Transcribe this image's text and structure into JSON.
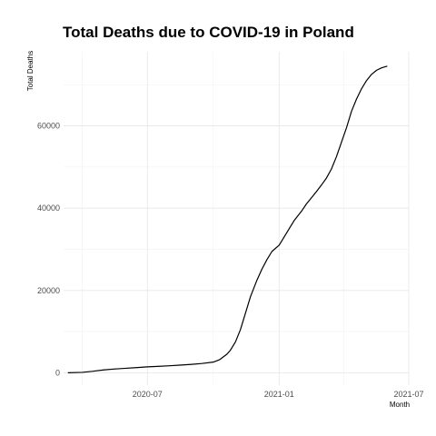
{
  "chart_data": {
    "type": "line",
    "title": "Total Deaths due to COVID-19 in Poland",
    "xlabel": "Month",
    "ylabel": "Total Deaths",
    "x_ticks": [
      {
        "label": "2020-07",
        "date": "2020-07-01"
      },
      {
        "label": "2021-01",
        "date": "2021-01-01"
      },
      {
        "label": "2021-07",
        "date": "2021-07-01"
      }
    ],
    "y_ticks": [
      0,
      20000,
      40000,
      60000
    ],
    "xlim": [
      "2020-03-06",
      "2021-07-01"
    ],
    "ylim": [
      -3000,
      78000
    ],
    "grid": true,
    "series": [
      {
        "name": "Total Deaths",
        "color": "#000000",
        "points": [
          [
            "2020-03-12",
            0
          ],
          [
            "2020-04-01",
            100
          ],
          [
            "2020-04-15",
            350
          ],
          [
            "2020-05-01",
            700
          ],
          [
            "2020-05-15",
            900
          ],
          [
            "2020-06-01",
            1100
          ],
          [
            "2020-06-15",
            1250
          ],
          [
            "2020-07-01",
            1450
          ],
          [
            "2020-07-15",
            1550
          ],
          [
            "2020-08-01",
            1700
          ],
          [
            "2020-08-15",
            1850
          ],
          [
            "2020-09-01",
            2050
          ],
          [
            "2020-09-15",
            2250
          ],
          [
            "2020-10-01",
            2600
          ],
          [
            "2020-10-10",
            3200
          ],
          [
            "2020-10-20",
            4500
          ],
          [
            "2020-10-25",
            5500
          ],
          [
            "2020-11-01",
            7500
          ],
          [
            "2020-11-08",
            10500
          ],
          [
            "2020-11-15",
            14500
          ],
          [
            "2020-11-22",
            18500
          ],
          [
            "2020-12-01",
            22500
          ],
          [
            "2020-12-08",
            25200
          ],
          [
            "2020-12-15",
            27500
          ],
          [
            "2020-12-22",
            29500
          ],
          [
            "2021-01-01",
            31000
          ],
          [
            "2021-01-08",
            33000
          ],
          [
            "2021-01-15",
            35000
          ],
          [
            "2021-01-22",
            37000
          ],
          [
            "2021-02-01",
            39200
          ],
          [
            "2021-02-08",
            41000
          ],
          [
            "2021-02-15",
            42500
          ],
          [
            "2021-02-22",
            44000
          ],
          [
            "2021-03-01",
            45600
          ],
          [
            "2021-03-08",
            47300
          ],
          [
            "2021-03-15",
            49500
          ],
          [
            "2021-03-22",
            52500
          ],
          [
            "2021-03-29",
            56000
          ],
          [
            "2021-04-05",
            59500
          ],
          [
            "2021-04-12",
            63500
          ],
          [
            "2021-04-19",
            66500
          ],
          [
            "2021-04-26",
            69000
          ],
          [
            "2021-05-03",
            71000
          ],
          [
            "2021-05-10",
            72500
          ],
          [
            "2021-05-17",
            73500
          ],
          [
            "2021-05-24",
            74100
          ],
          [
            "2021-06-01",
            74500
          ]
        ]
      }
    ]
  }
}
